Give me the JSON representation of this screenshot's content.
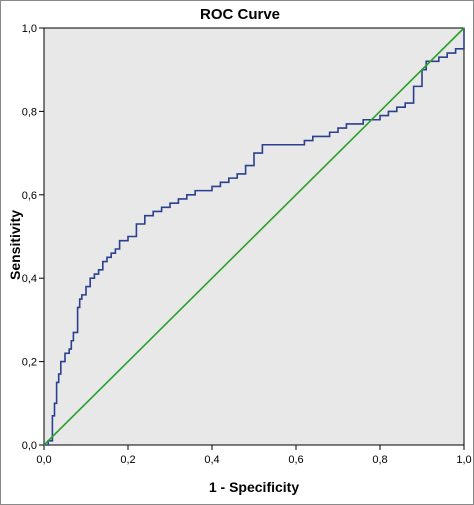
{
  "chart_data": {
    "type": "line",
    "title": "ROC Curve",
    "xlabel": "1 - Specificity",
    "ylabel": "Sensitivity",
    "xlim": [
      0,
      1
    ],
    "ylim": [
      0,
      1
    ],
    "xticks": [
      "0,0",
      "0,2",
      "0,4",
      "0,6",
      "0,8",
      "1,0"
    ],
    "yticks": [
      "0,0",
      "0,2",
      "0,4",
      "0,6",
      "0,8",
      "1,0"
    ],
    "grid": false,
    "plot_background": "#e8e8e8",
    "series": [
      {
        "color": "#2b3f8f",
        "step": true,
        "x": [
          0.0,
          0.01,
          0.02,
          0.02,
          0.025,
          0.03,
          0.035,
          0.04,
          0.05,
          0.06,
          0.065,
          0.07,
          0.08,
          0.085,
          0.09,
          0.1,
          0.11,
          0.12,
          0.13,
          0.14,
          0.15,
          0.16,
          0.17,
          0.18,
          0.2,
          0.22,
          0.24,
          0.26,
          0.28,
          0.3,
          0.32,
          0.34,
          0.36,
          0.38,
          0.4,
          0.42,
          0.44,
          0.46,
          0.48,
          0.5,
          0.52,
          0.54,
          0.58,
          0.62,
          0.64,
          0.66,
          0.68,
          0.7,
          0.72,
          0.74,
          0.76,
          0.78,
          0.8,
          0.82,
          0.84,
          0.86,
          0.88,
          0.9,
          0.91,
          0.92,
          0.94,
          0.96,
          0.98,
          1.0
        ],
        "y": [
          0.0,
          0.01,
          0.03,
          0.07,
          0.1,
          0.15,
          0.17,
          0.2,
          0.22,
          0.23,
          0.25,
          0.27,
          0.33,
          0.35,
          0.36,
          0.38,
          0.4,
          0.41,
          0.42,
          0.44,
          0.45,
          0.46,
          0.47,
          0.49,
          0.5,
          0.53,
          0.55,
          0.56,
          0.57,
          0.58,
          0.59,
          0.6,
          0.61,
          0.61,
          0.62,
          0.63,
          0.64,
          0.65,
          0.67,
          0.7,
          0.72,
          0.72,
          0.72,
          0.73,
          0.74,
          0.74,
          0.75,
          0.76,
          0.77,
          0.77,
          0.78,
          0.78,
          0.79,
          0.8,
          0.81,
          0.82,
          0.86,
          0.9,
          0.92,
          0.92,
          0.93,
          0.94,
          0.95,
          1.0
        ]
      },
      {
        "color": "#2aa12a",
        "step": false,
        "x": [
          0,
          1
        ],
        "y": [
          0,
          1
        ]
      }
    ]
  }
}
